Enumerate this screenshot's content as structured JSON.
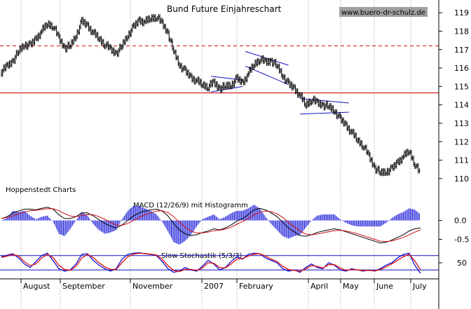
{
  "chart_data": {
    "type": "candlestick",
    "title": "Bund Future Einjahreschart",
    "watermark": "www.buero-dr-schulz.de",
    "source_label": "Hoppenstedt Charts",
    "x_labels": [
      "August",
      "September",
      "November",
      "2007",
      "February",
      "April",
      "May",
      "June",
      "July"
    ],
    "price_panel": {
      "y_ticks": [
        "119",
        "118",
        "117",
        "116",
        "115",
        "114",
        "113",
        "112",
        "111",
        "110"
      ],
      "ylim": [
        109.5,
        119.5
      ],
      "series": [
        {
          "values": [
            115.8,
            116.1,
            116.4,
            116.9,
            117.3,
            117.2,
            117.6,
            118.0,
            118.4,
            118.3,
            117.6,
            117.1,
            117.2,
            117.8,
            118.5,
            118.3,
            117.9,
            117.6,
            117.3,
            117.0,
            116.8,
            117.2,
            117.8,
            118.2,
            118.6,
            118.5,
            118.7,
            118.8,
            118.4,
            117.9,
            116.9,
            116.2,
            115.8,
            115.5,
            115.3,
            115.1,
            115.0,
            115.2,
            114.9,
            115.0,
            115.1,
            115.4,
            115.2,
            115.7,
            116.2,
            116.5,
            116.3,
            116.4,
            116.1,
            115.6,
            115.1,
            114.9,
            114.5,
            114.0,
            114.3,
            114.1,
            114.0,
            113.9,
            113.7,
            113.2,
            112.9,
            112.5,
            112.1,
            111.8,
            111.2,
            110.6,
            110.3,
            110.4,
            110.5,
            110.9,
            111.2,
            111.5,
            110.8,
            110.2
          ]
        }
      ],
      "annotations": {
        "resistance_level": 117.2,
        "support_level": 114.65
      }
    },
    "macd_panel": {
      "label": "MACD (12/26/9) mit Histogramm",
      "y_ticks": [
        "0.0",
        "-0.5"
      ],
      "ylim": [
        -0.75,
        0.55
      ],
      "series": [
        {
          "values": [
            0.05,
            0.1,
            0.2,
            0.25,
            0.3,
            0.3,
            0.28,
            0.32,
            0.35,
            0.3,
            0.15,
            0.05,
            0.05,
            0.1,
            0.2,
            0.2,
            0.12,
            0.02,
            -0.08,
            -0.15,
            -0.2,
            -0.12,
            0.0,
            0.12,
            0.2,
            0.25,
            0.28,
            0.3,
            0.25,
            0.12,
            -0.08,
            -0.25,
            -0.35,
            -0.4,
            -0.38,
            -0.32,
            -0.28,
            -0.22,
            -0.25,
            -0.2,
            -0.12,
            -0.02,
            0.05,
            0.15,
            0.28,
            0.32,
            0.28,
            0.2,
            0.1,
            -0.05,
            -0.2,
            -0.3,
            -0.4,
            -0.42,
            -0.38,
            -0.32,
            -0.28,
            -0.25,
            -0.22,
            -0.25,
            -0.3,
            -0.35,
            -0.4,
            -0.45,
            -0.5,
            -0.55,
            -0.6,
            -0.58,
            -0.52,
            -0.45,
            -0.38,
            -0.28,
            -0.22,
            -0.2
          ]
        },
        {
          "values": [
            0.05,
            0.08,
            0.12,
            0.18,
            0.22,
            0.26,
            0.27,
            0.29,
            0.31,
            0.31,
            0.26,
            0.18,
            0.12,
            0.1,
            0.13,
            0.16,
            0.15,
            0.1,
            0.03,
            -0.05,
            -0.12,
            -0.13,
            -0.08,
            0.0,
            0.08,
            0.15,
            0.2,
            0.25,
            0.26,
            0.21,
            0.1,
            -0.05,
            -0.18,
            -0.28,
            -0.33,
            -0.33,
            -0.31,
            -0.27,
            -0.26,
            -0.23,
            -0.18,
            -0.1,
            -0.03,
            0.05,
            0.15,
            0.22,
            0.25,
            0.23,
            0.18,
            0.08,
            -0.05,
            -0.17,
            -0.28,
            -0.36,
            -0.38,
            -0.36,
            -0.33,
            -0.3,
            -0.27,
            -0.26,
            -0.28,
            -0.31,
            -0.35,
            -0.4,
            -0.45,
            -0.5,
            -0.55,
            -0.56,
            -0.54,
            -0.5,
            -0.45,
            -0.38,
            -0.31,
            -0.25
          ]
        }
      ]
    },
    "stochastic_panel": {
      "label": "Slow Stochastik (5/3/3)",
      "y_ticks": [
        "50"
      ],
      "ylim": [
        0,
        100
      ],
      "reference_levels": [
        80,
        20
      ],
      "series": [
        {
          "values": [
            75,
            82,
            88,
            70,
            45,
            30,
            55,
            80,
            90,
            60,
            25,
            15,
            20,
            45,
            85,
            88,
            60,
            40,
            25,
            15,
            25,
            65,
            85,
            90,
            92,
            88,
            85,
            80,
            55,
            25,
            10,
            15,
            30,
            20,
            15,
            35,
            60,
            45,
            20,
            30,
            55,
            75,
            65,
            85,
            90,
            88,
            70,
            60,
            50,
            25,
            15,
            20,
            10,
            30,
            45,
            30,
            25,
            50,
            40,
            20,
            15,
            25,
            20,
            15,
            20,
            15,
            25,
            40,
            50,
            70,
            85,
            90,
            40,
            5
          ]
        },
        {
          "values": [
            72,
            78,
            85,
            78,
            55,
            38,
            45,
            70,
            85,
            72,
            40,
            22,
            18,
            35,
            70,
            85,
            72,
            50,
            33,
            22,
            22,
            50,
            75,
            86,
            90,
            89,
            86,
            83,
            65,
            38,
            18,
            13,
            22,
            22,
            18,
            28,
            50,
            48,
            30,
            28,
            45,
            65,
            68,
            78,
            86,
            88,
            78,
            65,
            55,
            35,
            22,
            18,
            14,
            24,
            38,
            35,
            28,
            42,
            42,
            28,
            18,
            22,
            20,
            17,
            18,
            16,
            21,
            33,
            45,
            60,
            75,
            86,
            58,
            20
          ]
        }
      ]
    }
  }
}
